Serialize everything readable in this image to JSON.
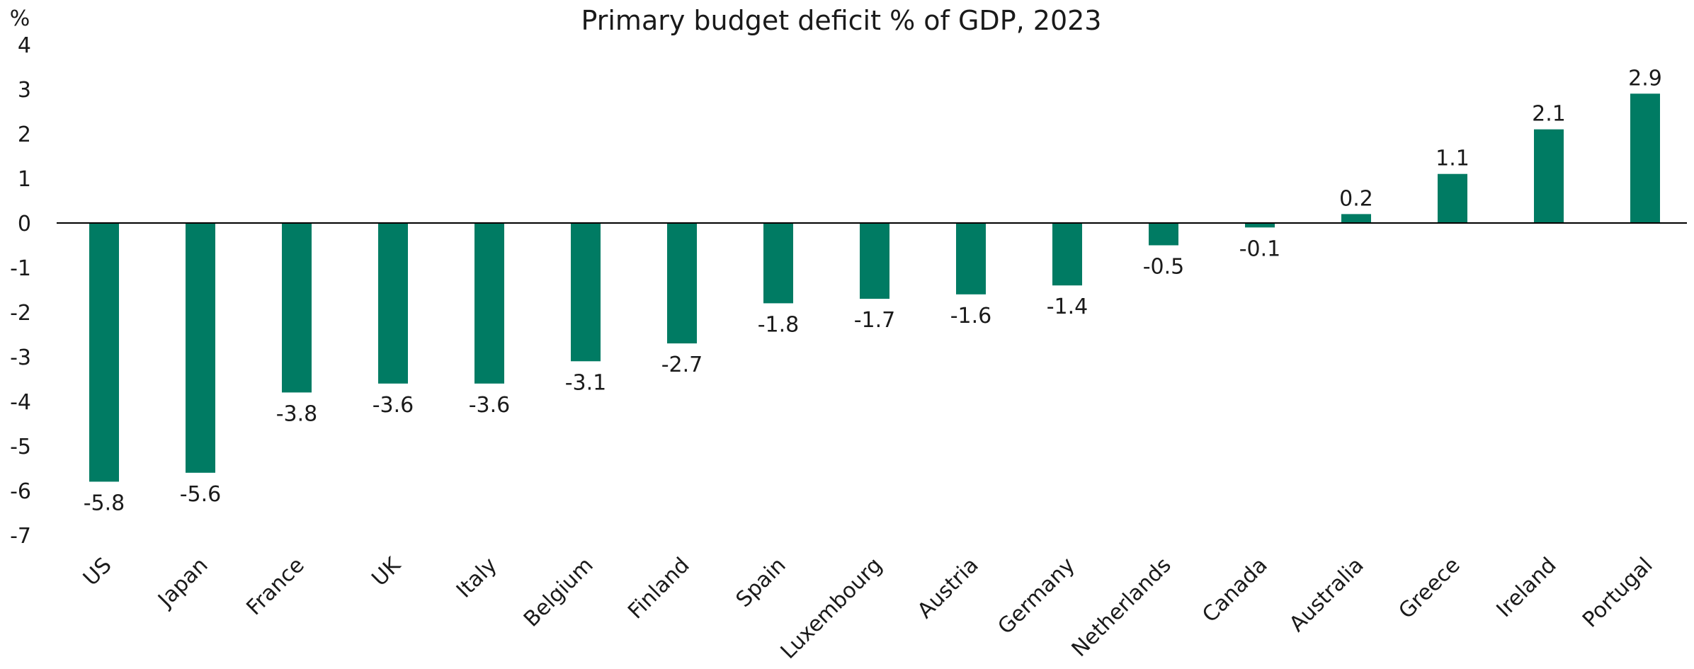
{
  "chart_data": {
    "type": "bar",
    "title": "Primary budget deficit % of GDP, 2023",
    "unit_label": "%",
    "xlabel": "",
    "ylabel": "",
    "categories": [
      "US",
      "Japan",
      "France",
      "UK",
      "Italy",
      "Belgium",
      "Finland",
      "Spain",
      "Luxembourg",
      "Austria",
      "Germany",
      "Netherlands",
      "Canada",
      "Australia",
      "Greece",
      "Ireland",
      "Portugal"
    ],
    "values": [
      -5.8,
      -5.6,
      -3.8,
      -3.6,
      -3.6,
      -3.1,
      -2.7,
      -1.8,
      -1.7,
      -1.6,
      -1.4,
      -0.5,
      -0.1,
      0.2,
      1.1,
      2.1,
      2.9
    ],
    "data_labels": [
      "-5.8",
      "-5.6",
      "-3.8",
      "-3.6",
      "-3.6",
      "-3.1",
      "-2.7",
      "-1.8",
      "-1.7",
      "-1.6",
      "-1.4",
      "-0.5",
      "-0.1",
      "0.2",
      "1.1",
      "2.1",
      "2.9"
    ],
    "ylim": [
      -7,
      4
    ],
    "yticks": [
      4,
      3,
      2,
      1,
      0,
      -1,
      -2,
      -3,
      -4,
      -5,
      -6,
      -7
    ],
    "grid": false,
    "legend": "none",
    "bar_color": "#007B63",
    "axis_color": "#000000",
    "text_color": "#1a1a1a"
  }
}
